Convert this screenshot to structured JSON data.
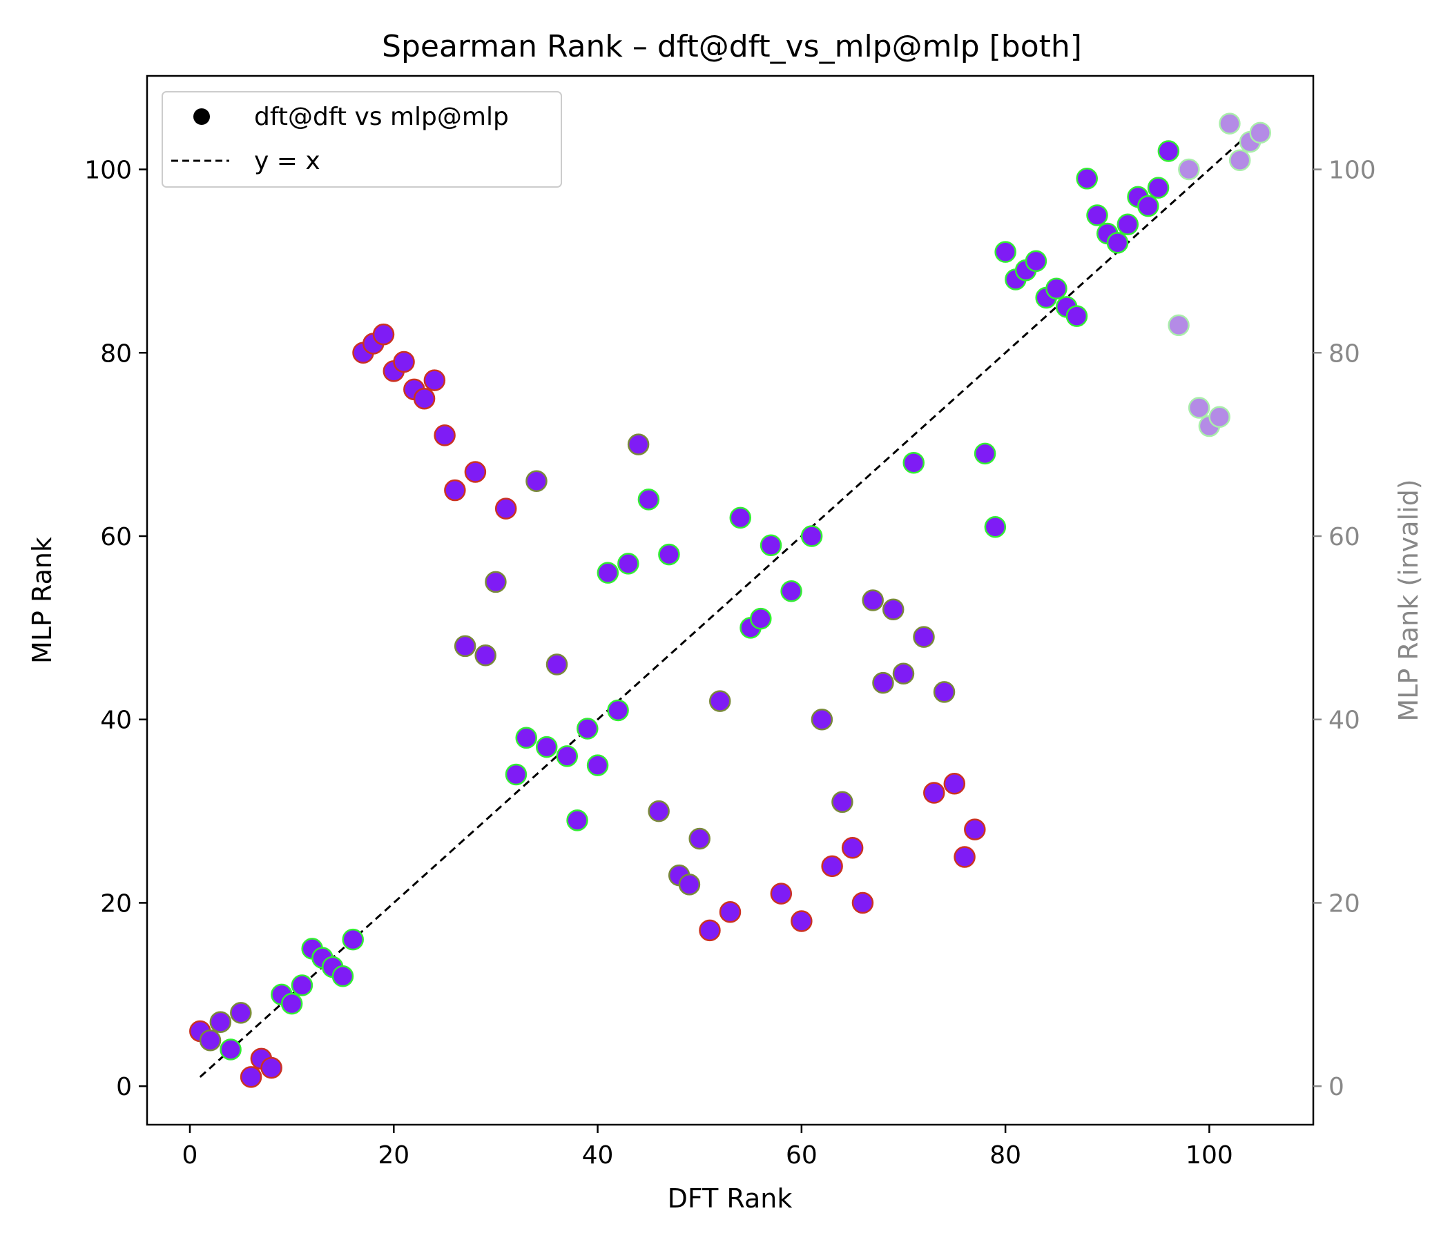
{
  "chart_data": {
    "type": "scatter",
    "title": "Spearman Rank – dft@dft_vs_mlp@mlp [both]",
    "xlabel": "DFT Rank",
    "ylabel": "MLP Rank",
    "ylabel_right": "MLP Rank (invalid)",
    "xlim": [
      -4.2,
      110.2
    ],
    "ylim": [
      -4.2,
      110.2
    ],
    "xticks": [
      0,
      20,
      40,
      60,
      80,
      100
    ],
    "yticks": [
      0,
      20,
      40,
      60,
      80,
      100
    ],
    "xtick_labels": [
      "0",
      "20",
      "40",
      "60",
      "80",
      "100"
    ],
    "ytick_labels": [
      "0",
      "20",
      "40",
      "60",
      "80",
      "100"
    ],
    "grid": false,
    "legend": {
      "placement": "top-left",
      "entries": [
        {
          "label": "dft@dft vs mlp@mlp",
          "marker": "circle"
        },
        {
          "label": "y = x",
          "marker": "dashed-line"
        }
      ]
    },
    "colors": {
      "fill": "#7f1cf5",
      "edge_good": "#33ee33",
      "edge_bad": "#cc3322",
      "edge_mid": "#7a8a3a",
      "invalid_fill": "#b48be6",
      "reference_line": "#000000",
      "right_axis": "#888888"
    },
    "reference_line": {
      "label": "y = x",
      "x": [
        1,
        105
      ],
      "y": [
        1,
        105
      ]
    },
    "series": [
      {
        "name": "dft@dft vs mlp@mlp",
        "points": [
          {
            "x": 1,
            "y": 6,
            "edge": "bad"
          },
          {
            "x": 2,
            "y": 5,
            "edge": "mid"
          },
          {
            "x": 3,
            "y": 7,
            "edge": "mid"
          },
          {
            "x": 4,
            "y": 4,
            "edge": "good"
          },
          {
            "x": 5,
            "y": 8,
            "edge": "mid"
          },
          {
            "x": 6,
            "y": 1,
            "edge": "bad"
          },
          {
            "x": 7,
            "y": 3,
            "edge": "bad"
          },
          {
            "x": 8,
            "y": 2,
            "edge": "bad"
          },
          {
            "x": 9,
            "y": 10,
            "edge": "good"
          },
          {
            "x": 10,
            "y": 9,
            "edge": "good"
          },
          {
            "x": 11,
            "y": 11,
            "edge": "good"
          },
          {
            "x": 12,
            "y": 15,
            "edge": "good"
          },
          {
            "x": 13,
            "y": 14,
            "edge": "good"
          },
          {
            "x": 14,
            "y": 13,
            "edge": "good"
          },
          {
            "x": 15,
            "y": 12,
            "edge": "good"
          },
          {
            "x": 16,
            "y": 16,
            "edge": "good"
          },
          {
            "x": 17,
            "y": 80,
            "edge": "bad"
          },
          {
            "x": 18,
            "y": 81,
            "edge": "bad"
          },
          {
            "x": 19,
            "y": 82,
            "edge": "bad"
          },
          {
            "x": 20,
            "y": 78,
            "edge": "bad"
          },
          {
            "x": 21,
            "y": 79,
            "edge": "bad"
          },
          {
            "x": 22,
            "y": 76,
            "edge": "bad"
          },
          {
            "x": 23,
            "y": 75,
            "edge": "bad"
          },
          {
            "x": 24,
            "y": 77,
            "edge": "bad"
          },
          {
            "x": 25,
            "y": 71,
            "edge": "bad"
          },
          {
            "x": 26,
            "y": 65,
            "edge": "bad"
          },
          {
            "x": 27,
            "y": 48,
            "edge": "mid"
          },
          {
            "x": 28,
            "y": 67,
            "edge": "bad"
          },
          {
            "x": 29,
            "y": 47,
            "edge": "mid"
          },
          {
            "x": 30,
            "y": 55,
            "edge": "mid"
          },
          {
            "x": 31,
            "y": 63,
            "edge": "bad"
          },
          {
            "x": 32,
            "y": 34,
            "edge": "good"
          },
          {
            "x": 33,
            "y": 38,
            "edge": "good"
          },
          {
            "x": 34,
            "y": 66,
            "edge": "mid"
          },
          {
            "x": 35,
            "y": 37,
            "edge": "good"
          },
          {
            "x": 36,
            "y": 46,
            "edge": "mid"
          },
          {
            "x": 37,
            "y": 36,
            "edge": "good"
          },
          {
            "x": 38,
            "y": 29,
            "edge": "good"
          },
          {
            "x": 39,
            "y": 39,
            "edge": "good"
          },
          {
            "x": 40,
            "y": 35,
            "edge": "good"
          },
          {
            "x": 41,
            "y": 56,
            "edge": "good"
          },
          {
            "x": 42,
            "y": 41,
            "edge": "good"
          },
          {
            "x": 43,
            "y": 57,
            "edge": "good"
          },
          {
            "x": 44,
            "y": 70,
            "edge": "mid"
          },
          {
            "x": 45,
            "y": 64,
            "edge": "good"
          },
          {
            "x": 46,
            "y": 30,
            "edge": "mid"
          },
          {
            "x": 47,
            "y": 58,
            "edge": "good"
          },
          {
            "x": 48,
            "y": 23,
            "edge": "mid"
          },
          {
            "x": 49,
            "y": 22,
            "edge": "mid"
          },
          {
            "x": 50,
            "y": 27,
            "edge": "mid"
          },
          {
            "x": 51,
            "y": 17,
            "edge": "bad"
          },
          {
            "x": 52,
            "y": 42,
            "edge": "mid"
          },
          {
            "x": 53,
            "y": 19,
            "edge": "bad"
          },
          {
            "x": 54,
            "y": 62,
            "edge": "good"
          },
          {
            "x": 55,
            "y": 50,
            "edge": "good"
          },
          {
            "x": 56,
            "y": 51,
            "edge": "good"
          },
          {
            "x": 57,
            "y": 59,
            "edge": "good"
          },
          {
            "x": 58,
            "y": 21,
            "edge": "bad"
          },
          {
            "x": 59,
            "y": 54,
            "edge": "good"
          },
          {
            "x": 60,
            "y": 18,
            "edge": "bad"
          },
          {
            "x": 61,
            "y": 60,
            "edge": "good"
          },
          {
            "x": 62,
            "y": 40,
            "edge": "mid"
          },
          {
            "x": 63,
            "y": 24,
            "edge": "bad"
          },
          {
            "x": 64,
            "y": 31,
            "edge": "mid"
          },
          {
            "x": 65,
            "y": 26,
            "edge": "bad"
          },
          {
            "x": 66,
            "y": 20,
            "edge": "bad"
          },
          {
            "x": 67,
            "y": 53,
            "edge": "mid"
          },
          {
            "x": 68,
            "y": 44,
            "edge": "mid"
          },
          {
            "x": 69,
            "y": 52,
            "edge": "mid"
          },
          {
            "x": 70,
            "y": 45,
            "edge": "mid"
          },
          {
            "x": 71,
            "y": 68,
            "edge": "good"
          },
          {
            "x": 72,
            "y": 49,
            "edge": "mid"
          },
          {
            "x": 73,
            "y": 32,
            "edge": "bad"
          },
          {
            "x": 74,
            "y": 43,
            "edge": "mid"
          },
          {
            "x": 75,
            "y": 33,
            "edge": "bad"
          },
          {
            "x": 76,
            "y": 25,
            "edge": "bad"
          },
          {
            "x": 77,
            "y": 28,
            "edge": "bad"
          },
          {
            "x": 78,
            "y": 69,
            "edge": "good"
          },
          {
            "x": 79,
            "y": 61,
            "edge": "good"
          },
          {
            "x": 80,
            "y": 91,
            "edge": "good"
          },
          {
            "x": 81,
            "y": 88,
            "edge": "good"
          },
          {
            "x": 82,
            "y": 89,
            "edge": "good"
          },
          {
            "x": 83,
            "y": 90,
            "edge": "good"
          },
          {
            "x": 84,
            "y": 86,
            "edge": "good"
          },
          {
            "x": 85,
            "y": 87,
            "edge": "good"
          },
          {
            "x": 86,
            "y": 85,
            "edge": "good"
          },
          {
            "x": 87,
            "y": 84,
            "edge": "good"
          },
          {
            "x": 88,
            "y": 99,
            "edge": "good"
          },
          {
            "x": 89,
            "y": 95,
            "edge": "good"
          },
          {
            "x": 90,
            "y": 93,
            "edge": "good"
          },
          {
            "x": 91,
            "y": 92,
            "edge": "good"
          },
          {
            "x": 92,
            "y": 94,
            "edge": "good"
          },
          {
            "x": 93,
            "y": 97,
            "edge": "good"
          },
          {
            "x": 94,
            "y": 96,
            "edge": "good"
          },
          {
            "x": 95,
            "y": 98,
            "edge": "good"
          },
          {
            "x": 96,
            "y": 102,
            "edge": "good"
          }
        ]
      },
      {
        "name": "invalid",
        "points": [
          {
            "x": 97,
            "y": 83
          },
          {
            "x": 98,
            "y": 100
          },
          {
            "x": 99,
            "y": 74
          },
          {
            "x": 100,
            "y": 72
          },
          {
            "x": 101,
            "y": 73
          },
          {
            "x": 102,
            "y": 105
          },
          {
            "x": 103,
            "y": 101
          },
          {
            "x": 104,
            "y": 103
          },
          {
            "x": 105,
            "y": 104
          }
        ]
      }
    ]
  }
}
